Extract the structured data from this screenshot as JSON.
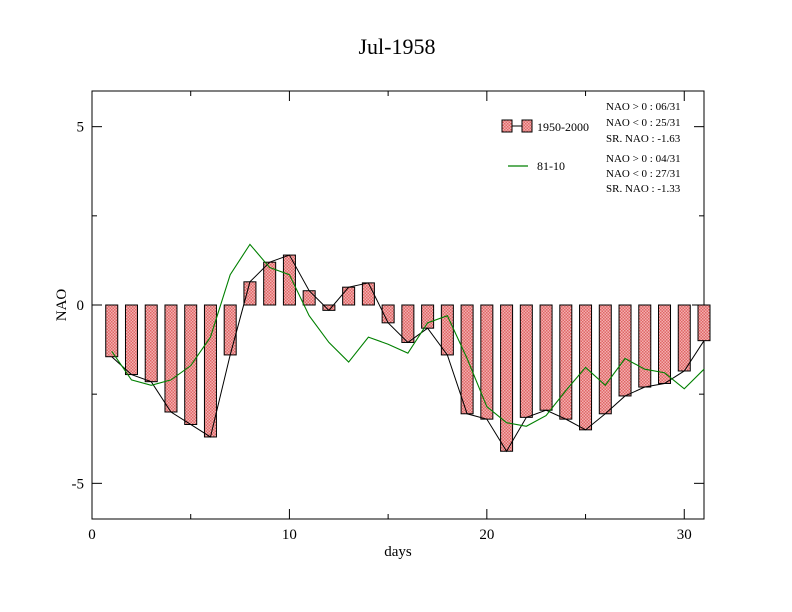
{
  "chart_data": {
    "type": "bar",
    "title": "Jul-1958",
    "xlabel": "days",
    "ylabel": "NAO",
    "xlim": [
      0,
      31
    ],
    "ylim": [
      -6,
      6
    ],
    "x_ticks": [
      0,
      10,
      20,
      30
    ],
    "y_ticks": [
      5,
      0,
      -5
    ],
    "x_tick_labels": [
      "0",
      "10",
      "20",
      "30"
    ],
    "y_tick_labels": [
      "5",
      "0",
      "-5"
    ],
    "grid": false,
    "legend_position": "top-right",
    "days": [
      1,
      2,
      3,
      4,
      5,
      6,
      7,
      8,
      9,
      10,
      11,
      12,
      13,
      14,
      15,
      16,
      17,
      18,
      19,
      20,
      21,
      22,
      23,
      24,
      25,
      26,
      27,
      28,
      29,
      30,
      31
    ],
    "series": [
      {
        "name": "1950-2000",
        "kind": "bar",
        "color": "#e06666",
        "values": [
          -1.45,
          -1.95,
          -2.15,
          -3.0,
          -3.35,
          -3.7,
          -1.4,
          0.65,
          1.2,
          1.4,
          0.4,
          -0.15,
          0.5,
          0.62,
          -0.5,
          -1.05,
          -0.65,
          -1.4,
          -3.05,
          -3.2,
          -4.1,
          -3.15,
          -2.95,
          -3.2,
          -3.5,
          -3.05,
          -2.55,
          -2.3,
          -2.2,
          -1.85,
          -1.0
        ]
      },
      {
        "name": "81-10",
        "kind": "line",
        "color": "#008000",
        "values": [
          -1.3,
          -2.1,
          -2.25,
          -2.1,
          -1.7,
          -0.9,
          0.85,
          1.7,
          1.05,
          0.85,
          -0.3,
          -1.05,
          -1.6,
          -0.9,
          -1.1,
          -1.35,
          -0.5,
          -0.3,
          -1.5,
          -2.85,
          -3.3,
          -3.4,
          -3.1,
          -2.4,
          -1.75,
          -2.25,
          -1.5,
          -1.8,
          -1.9,
          -2.35,
          -1.8
        ]
      }
    ],
    "stats": [
      {
        "line1": "NAO > 0 : 06/31",
        "line2": "NAO < 0 : 25/31",
        "line3": "SR. NAO : -1.63"
      },
      {
        "line1": "NAO > 0 : 04/31",
        "line2": "NAO < 0 : 27/31",
        "line3": "SR. NAO : -1.33"
      }
    ],
    "colors": {
      "bar_fill": "#e06666",
      "bar_stroke": "#000000",
      "connector": "#000000",
      "line_8110": "#008000"
    }
  }
}
